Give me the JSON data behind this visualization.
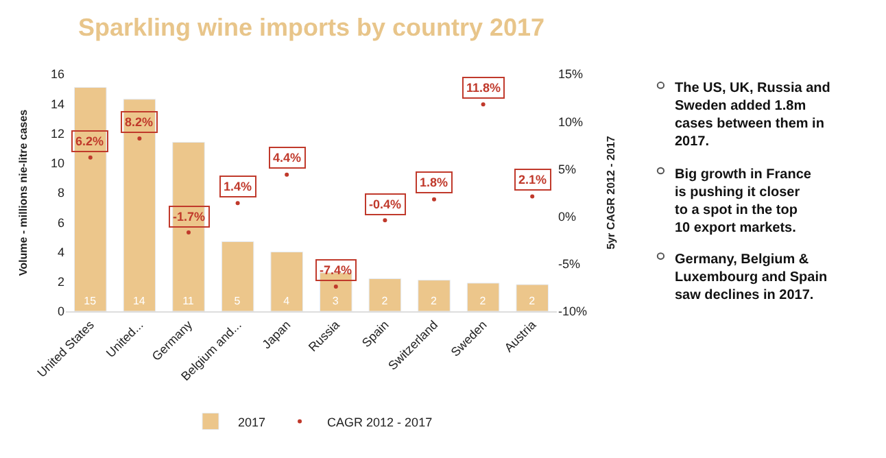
{
  "chart_data": {
    "type": "bar",
    "title": "Sparkling wine imports by country 2017",
    "ylabel": "Volume - millions nie-litre cases",
    "y2label": "5yr CAGR 2012 - 2017",
    "categories": [
      "United States",
      "United...",
      "Germany",
      "Belgium and...",
      "Japan",
      "Russia",
      "Spain",
      "Switzerland",
      "Sweden",
      "Austria"
    ],
    "series": [
      {
        "name": "2017",
        "color": "#ecc68b",
        "values": [
          15.1,
          14.3,
          11.4,
          4.7,
          4.0,
          2.6,
          2.2,
          2.1,
          1.9,
          1.8
        ],
        "value_labels": [
          "15",
          "14",
          "11",
          "5",
          "4",
          "3",
          "2",
          "2",
          "2",
          "2"
        ]
      },
      {
        "name": "CAGR 2012 - 2017",
        "type": "scatter",
        "axis": "y2",
        "color": "#c0392b",
        "marker": "circle",
        "values": [
          6.2,
          8.2,
          -1.7,
          1.4,
          4.4,
          -7.4,
          -0.4,
          1.8,
          11.8,
          2.1
        ],
        "value_labels": [
          "6.2%",
          "8.2%",
          "-1.7%",
          "1.4%",
          "4.4%",
          "-7.4%",
          "-0.4%",
          "1.8%",
          "11.8%",
          "2.1%"
        ]
      }
    ],
    "ylim": [
      0,
      16
    ],
    "yticks": [
      0,
      2,
      4,
      6,
      8,
      10,
      12,
      14,
      16
    ],
    "y2lim": [
      -10,
      15
    ],
    "y2ticks": [
      {
        "value": -10,
        "label": "-10%"
      },
      {
        "value": -5,
        "label": "-5%"
      },
      {
        "value": 0,
        "label": "0%"
      },
      {
        "value": 5,
        "label": "5%"
      },
      {
        "value": 10,
        "label": "10%"
      },
      {
        "value": 15,
        "label": "15%"
      }
    ],
    "legend": "bottom",
    "annotations": [
      "The US, UK, Russia and Sweden added 1.8m cases between them in 2017.",
      "Big growth in France is pushing it closer to a spot in the top 10 export markets.",
      "Germany, Belgium & Luxembourg and Spain saw declines in 2017."
    ]
  }
}
